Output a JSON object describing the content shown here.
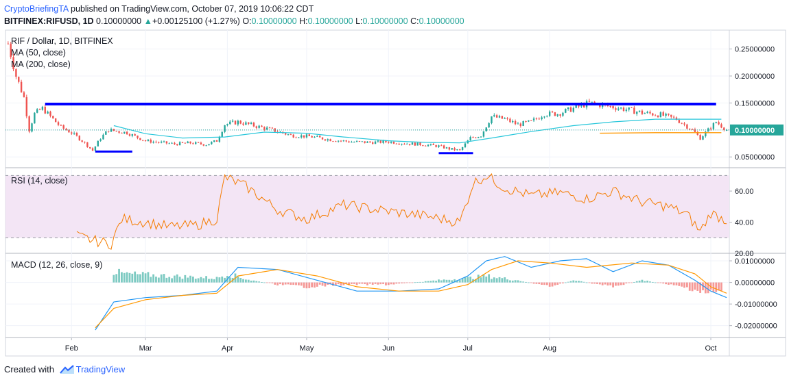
{
  "header": {
    "author": "CryptoBriefingTA",
    "published_text": "published on TradingView.com, October 07, 2019 10:06:22 CDT",
    "symbol": "BITFINEX:RIFUSD, 1D",
    "last": "0.10000000",
    "change_arrow": "▲",
    "change": "+0.00125100 (+1.27%)",
    "o_label": "O:",
    "o_value": "0.10000000",
    "h_label": "H:",
    "h_value": "0.10000000",
    "l_label": "L:",
    "l_value": "0.10000000",
    "c_label": "C:",
    "c_value": "0.10000000"
  },
  "legend": {
    "title": "RIF / Dollar, 1D, BITFINEX",
    "ma50": "MA (50, close)",
    "ma200": "MA (200, close)",
    "rsi": "RSI (14, close)",
    "macd": "MACD (12, 26, close, 9)"
  },
  "footer": {
    "created_with": "Created with",
    "brand": "TradingView"
  },
  "colors": {
    "up": "#26a69a",
    "down": "#ef5350",
    "ma50": "#26c6da",
    "ma200": "#ff9800",
    "trendline": "#0000ff",
    "rsi": "#f57c00",
    "rsi_band": "#f3e5f5",
    "macd": "#2196f3",
    "signal": "#ff9800",
    "last_price_tag": "#26a69a"
  },
  "chart_data": [
    {
      "type": "candlestick",
      "x_axis": {
        "ticks": [
          "Feb",
          "Mar",
          "Apr",
          "May",
          "Jun",
          "Jul",
          "Aug",
          "Oct"
        ],
        "tick_dates": [
          "2019-02-01",
          "2019-03-01",
          "2019-04-01",
          "2019-05-01",
          "2019-06-01",
          "2019-07-01",
          "2019-08-01",
          "2019-10-01"
        ],
        "range": [
          "2019-01-07",
          "2019-10-08"
        ]
      },
      "y_axis": {
        "ticks": [
          0.25,
          0.2,
          0.15,
          0.1,
          0.05
        ],
        "tick_labels": [
          "0.25000000",
          "0.20000000",
          "0.15000000",
          "0.10000000",
          "0.05000000"
        ],
        "range": [
          0.03,
          0.285
        ]
      },
      "last_price": 0.1,
      "last_price_label": "0.10000000",
      "close_series": {
        "dates": [
          "2019-01-08",
          "2019-01-11",
          "2019-01-14",
          "2019-01-16",
          "2019-01-18",
          "2019-01-21",
          "2019-01-24",
          "2019-01-28",
          "2019-02-01",
          "2019-02-05",
          "2019-02-09",
          "2019-02-12",
          "2019-02-15",
          "2019-02-19",
          "2019-02-22",
          "2019-02-25",
          "2019-03-01",
          "2019-03-06",
          "2019-03-12",
          "2019-03-18",
          "2019-03-24",
          "2019-03-28",
          "2019-03-31",
          "2019-04-05",
          "2019-04-12",
          "2019-04-18",
          "2019-04-25",
          "2019-05-02",
          "2019-05-10",
          "2019-05-18",
          "2019-05-25",
          "2019-06-01",
          "2019-06-08",
          "2019-06-14",
          "2019-06-20",
          "2019-06-24",
          "2019-06-28",
          "2019-07-02",
          "2019-07-06",
          "2019-07-10",
          "2019-07-15",
          "2019-07-20",
          "2019-07-25",
          "2019-07-30",
          "2019-08-04",
          "2019-08-10",
          "2019-08-16",
          "2019-08-22",
          "2019-08-28",
          "2019-09-05",
          "2019-09-12",
          "2019-09-18",
          "2019-09-24",
          "2019-09-27",
          "2019-09-30",
          "2019-10-03",
          "2019-10-07"
        ],
        "values": [
          0.26,
          0.2,
          0.16,
          0.1,
          0.13,
          0.14,
          0.125,
          0.105,
          0.095,
          0.08,
          0.062,
          0.085,
          0.1,
          0.097,
          0.095,
          0.088,
          0.08,
          0.077,
          0.074,
          0.076,
          0.073,
          0.08,
          0.11,
          0.115,
          0.107,
          0.1,
          0.09,
          0.088,
          0.082,
          0.078,
          0.077,
          0.078,
          0.075,
          0.073,
          0.07,
          0.065,
          0.062,
          0.085,
          0.09,
          0.125,
          0.12,
          0.11,
          0.115,
          0.13,
          0.13,
          0.14,
          0.15,
          0.145,
          0.14,
          0.132,
          0.128,
          0.12,
          0.1,
          0.085,
          0.1,
          0.115,
          0.1
        ]
      },
      "ma50": {
        "dates": [
          "2019-02-17",
          "2019-03-01",
          "2019-03-15",
          "2019-03-31",
          "2019-04-15",
          "2019-05-01",
          "2019-05-15",
          "2019-06-01",
          "2019-06-15",
          "2019-06-28",
          "2019-07-10",
          "2019-07-25",
          "2019-08-10",
          "2019-08-25",
          "2019-09-10",
          "2019-09-30",
          "2019-10-05"
        ],
        "values": [
          0.108,
          0.093,
          0.085,
          0.087,
          0.096,
          0.094,
          0.087,
          0.08,
          0.077,
          0.076,
          0.085,
          0.097,
          0.108,
          0.115,
          0.12,
          0.12,
          0.12
        ]
      },
      "ma200": {
        "dates": [
          "2019-08-20",
          "2019-09-10",
          "2019-10-05"
        ],
        "values": [
          0.094,
          0.095,
          0.095
        ]
      },
      "annotations": [
        {
          "type": "resistance",
          "from": "2019-01-22",
          "to": "2019-10-03",
          "value": 0.148
        },
        {
          "type": "support",
          "from": "2019-02-10",
          "to": "2019-02-24",
          "value": 0.06
        },
        {
          "type": "support",
          "from": "2019-06-20",
          "to": "2019-07-03",
          "value": 0.057
        }
      ]
    },
    {
      "type": "line",
      "name": "RSI (14, close)",
      "y_axis": {
        "ticks": [
          60,
          40,
          20
        ],
        "tick_labels": [
          "60.00",
          "40.00",
          "20.00"
        ],
        "range": [
          20,
          75
        ]
      },
      "band": [
        30,
        70
      ],
      "dates": [
        "2019-02-03",
        "2019-02-10",
        "2019-02-16",
        "2019-02-20",
        "2019-03-01",
        "2019-03-10",
        "2019-03-20",
        "2019-03-28",
        "2019-03-31",
        "2019-04-08",
        "2019-04-20",
        "2019-05-01",
        "2019-05-15",
        "2019-06-01",
        "2019-06-15",
        "2019-06-28",
        "2019-07-03",
        "2019-07-08",
        "2019-07-15",
        "2019-07-25",
        "2019-08-05",
        "2019-08-15",
        "2019-08-25",
        "2019-09-05",
        "2019-09-15",
        "2019-09-22",
        "2019-09-27",
        "2019-10-01",
        "2019-10-07"
      ],
      "values": [
        31,
        28,
        26,
        42,
        40,
        37,
        38,
        42,
        69,
        63,
        48,
        42,
        51,
        47,
        44,
        40,
        65,
        70,
        62,
        57,
        59,
        55,
        60,
        53,
        50,
        45,
        34,
        46,
        41
      ]
    },
    {
      "type": "bar+line",
      "name": "MACD (12, 26, close, 9)",
      "y_axis": {
        "ticks": [
          0.01,
          0,
          -0.01,
          -0.02
        ],
        "tick_labels": [
          "0.01000000",
          "0.00000000",
          "-0.01000000",
          "-0.02000000"
        ],
        "range": [
          -0.0255,
          0.0135
        ]
      },
      "macd": {
        "dates": [
          "2019-02-10",
          "2019-02-17",
          "2019-03-01",
          "2019-03-15",
          "2019-03-28",
          "2019-04-05",
          "2019-04-20",
          "2019-05-05",
          "2019-05-20",
          "2019-06-05",
          "2019-06-20",
          "2019-07-01",
          "2019-07-08",
          "2019-07-15",
          "2019-07-25",
          "2019-08-05",
          "2019-08-15",
          "2019-08-25",
          "2019-09-05",
          "2019-09-15",
          "2019-09-25",
          "2019-10-01",
          "2019-10-07"
        ],
        "values": [
          -0.022,
          -0.009,
          -0.007,
          -0.006,
          -0.004,
          0.007,
          0.006,
          0.001,
          -0.004,
          -0.004,
          -0.003,
          0.003,
          0.01,
          0.012,
          0.007,
          0.01,
          0.011,
          0.005,
          0.01,
          0.008,
          0.001,
          -0.004,
          -0.007
        ]
      },
      "signal": {
        "dates": [
          "2019-02-10",
          "2019-02-17",
          "2019-03-01",
          "2019-03-15",
          "2019-03-28",
          "2019-04-05",
          "2019-04-20",
          "2019-05-05",
          "2019-05-20",
          "2019-06-05",
          "2019-06-20",
          "2019-07-01",
          "2019-07-10",
          "2019-07-20",
          "2019-08-01",
          "2019-08-15",
          "2019-09-01",
          "2019-09-15",
          "2019-09-25",
          "2019-10-01",
          "2019-10-07"
        ],
        "values": [
          -0.021,
          -0.012,
          -0.008,
          -0.006,
          -0.005,
          0.003,
          0.006,
          0.003,
          -0.002,
          -0.004,
          -0.004,
          -0.001,
          0.006,
          0.01,
          0.009,
          0.007,
          0.009,
          0.008,
          0.004,
          -0.002,
          -0.005
        ]
      },
      "histogram": {
        "dates": [
          "2019-02-17",
          "2019-02-21",
          "2019-03-28",
          "2019-04-01",
          "2019-04-10",
          "2019-04-20",
          "2019-05-01",
          "2019-05-15",
          "2019-06-01",
          "2019-06-20",
          "2019-07-01",
          "2019-07-08",
          "2019-07-20",
          "2019-08-01",
          "2019-08-10",
          "2019-08-25",
          "2019-09-05",
          "2019-09-15",
          "2019-09-24",
          "2019-09-30",
          "2019-10-05"
        ],
        "values": [
          0.005,
          0.004,
          0.002,
          0.004,
          0.001,
          -0.001,
          -0.002,
          -0.001,
          -0.001,
          0.001,
          0.002,
          0.003,
          0.001,
          -0.002,
          0.001,
          -0.002,
          0.001,
          -0.001,
          -0.003,
          -0.005,
          -0.004
        ]
      }
    }
  ]
}
